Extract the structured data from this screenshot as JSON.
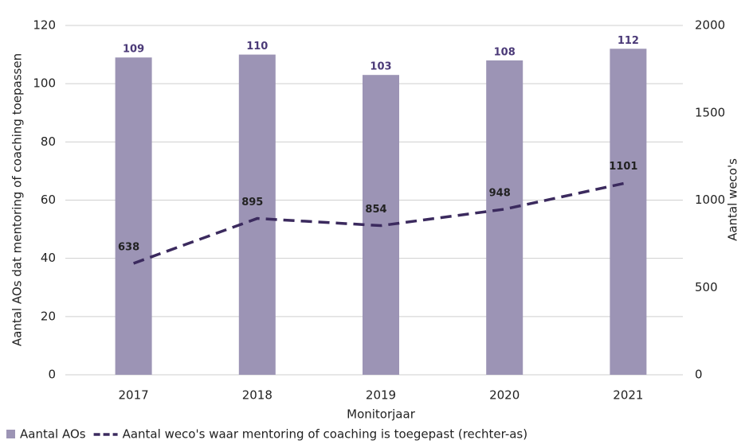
{
  "chart_data": {
    "type": "combo",
    "categories": [
      "2017",
      "2018",
      "2019",
      "2020",
      "2021"
    ],
    "xlabel": "Monitorjaar",
    "ylabel": "Aantal AOs dat mentoring of coaching toepassen",
    "y2label": "Aantal weco's",
    "ylim": [
      0,
      120
    ],
    "yticks": [
      0,
      20,
      40,
      60,
      80,
      100,
      120
    ],
    "y2lim": [
      0,
      2000
    ],
    "y2ticks": [
      0,
      500,
      1000,
      1500,
      2000
    ],
    "grid": true,
    "legend": "bottom-left",
    "series": [
      {
        "name": "Aantal AOs",
        "type": "bar",
        "color": "#9c94b5",
        "label_color": "#4b3a78",
        "values": [
          109,
          110,
          103,
          108,
          112
        ]
      },
      {
        "name": "Aantal weco's waar mentoring of coaching is toegepast (rechter-as)",
        "type": "line",
        "axis": "y2",
        "color": "#3b2a5e",
        "label_color": "#222222",
        "dashed": true,
        "values": [
          638,
          895,
          854,
          948,
          1101
        ]
      }
    ]
  }
}
